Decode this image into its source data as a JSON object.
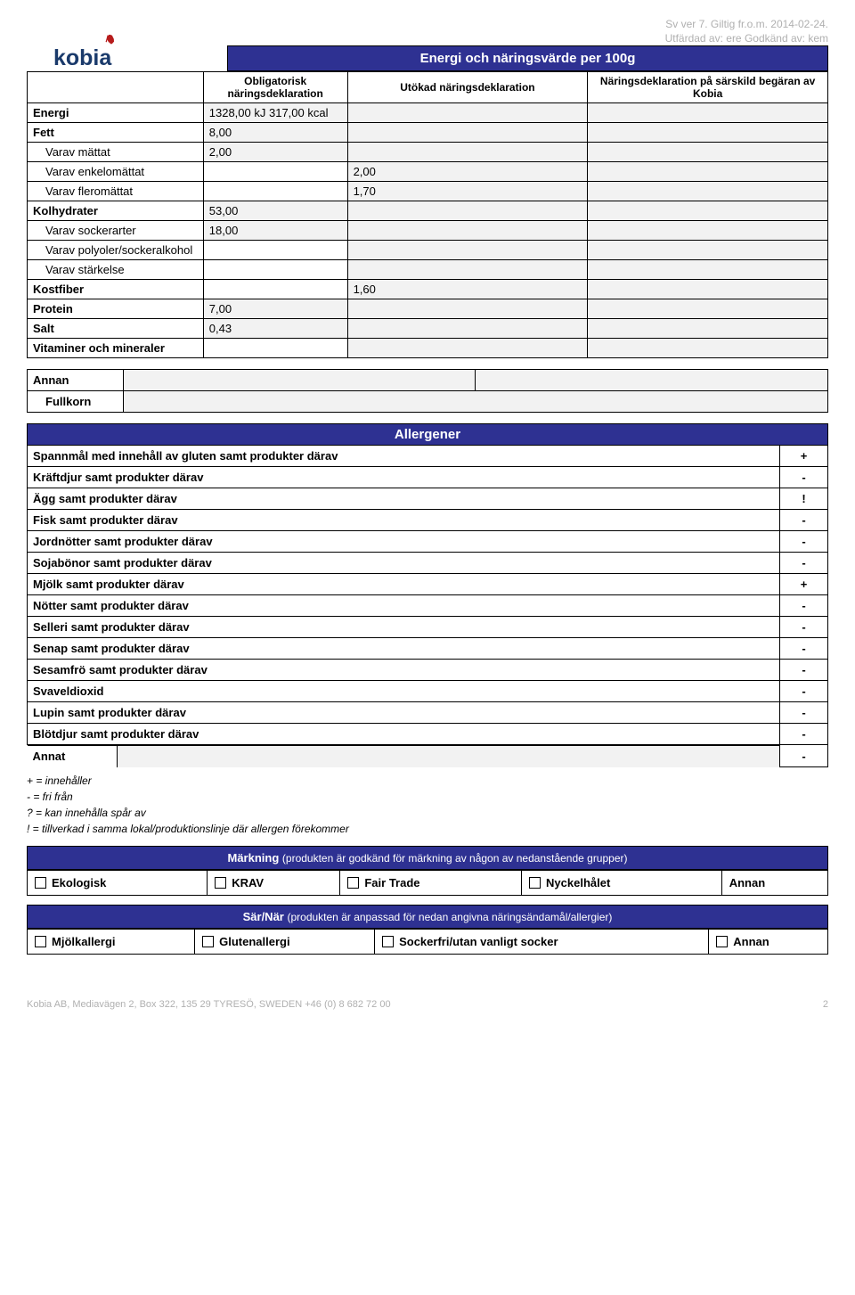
{
  "meta": {
    "line1": "Sv ver 7. Giltig fr.o.m. 2014-02-24.",
    "line2": "Utfärdad av: ere   Godkänd av: kem"
  },
  "logo": {
    "brand": "kobia",
    "accent": "#b71c1c",
    "text_color": "#1a3a6b"
  },
  "nutri": {
    "title": "Energi och näringsvärde per 100g",
    "head": {
      "c1": "",
      "c2": "Obligatorisk näringsdeklaration",
      "c3": "Utökad näringsdeklaration",
      "c4": "Näringsdeklaration på särskild begäran av Kobia"
    },
    "rows": [
      {
        "label": "Energi",
        "val": "1328,00 kJ   317,00 kcal",
        "ext": "",
        "sp": ""
      },
      {
        "label": "Fett",
        "val": "8,00",
        "ext": "",
        "sp": ""
      },
      {
        "label": "Varav mättat",
        "sub": true,
        "val": "2,00",
        "ext": "",
        "sp": ""
      },
      {
        "label": "Varav enkelomättat",
        "sub": true,
        "val": "",
        "ext": "2,00",
        "sp": ""
      },
      {
        "label": "Varav fleromättat",
        "sub": true,
        "val": "",
        "ext": "1,70",
        "sp": ""
      },
      {
        "label": "Kolhydrater",
        "val": "53,00",
        "ext": "",
        "sp": ""
      },
      {
        "label": "Varav sockerarter",
        "sub": true,
        "val": "18,00",
        "ext": "",
        "sp": ""
      },
      {
        "label": "Varav polyoler/sockeralkohol",
        "sub": true,
        "val": "",
        "ext": "",
        "sp": ""
      },
      {
        "label": "Varav stärkelse",
        "sub": true,
        "val": "",
        "ext": "",
        "sp": ""
      },
      {
        "label": "Kostfiber",
        "val": "",
        "ext": "1,60",
        "sp": ""
      },
      {
        "label": "Protein",
        "val": "7,00",
        "ext": "",
        "sp": ""
      },
      {
        "label": "Salt",
        "val": "0,43",
        "ext": "",
        "sp": ""
      },
      {
        "label": "Vitaminer och mineraler",
        "val": "",
        "ext": "",
        "sp": ""
      }
    ]
  },
  "annan": {
    "r1": {
      "c1": "Annan",
      "c2": "",
      "c3": ""
    },
    "r2": {
      "c1": "Fullkorn",
      "c2": ""
    }
  },
  "allergen": {
    "title": "Allergener",
    "rows": [
      {
        "label": "Spannmål med innehåll av gluten samt produkter därav",
        "mark": "+"
      },
      {
        "label": "Kräftdjur samt produkter därav",
        "mark": "-"
      },
      {
        "label": "Ägg samt produkter därav",
        "mark": "!"
      },
      {
        "label": "Fisk samt produkter därav",
        "mark": "-"
      },
      {
        "label": "Jordnötter samt produkter därav",
        "mark": "-"
      },
      {
        "label": "Sojabönor samt produkter därav",
        "mark": "-"
      },
      {
        "label": "Mjölk samt produkter därav",
        "mark": "+"
      },
      {
        "label": "Nötter samt produkter därav",
        "mark": "-"
      },
      {
        "label": "Selleri samt produkter därav",
        "mark": "-"
      },
      {
        "label": "Senap samt produkter därav",
        "mark": "-"
      },
      {
        "label": "Sesamfrö samt produkter därav",
        "mark": "-"
      },
      {
        "label": "Svaveldioxid",
        "mark": "-"
      },
      {
        "label": "Lupin samt produkter därav",
        "mark": "-"
      },
      {
        "label": "Blötdjur samt produkter därav",
        "mark": "-"
      }
    ],
    "annat": {
      "c1": "Annat",
      "c2": "",
      "mark": "-"
    }
  },
  "legend": {
    "l1": "+  = innehåller",
    "l2": "-  = fri från",
    "l3": "?  = kan innehålla spår av",
    "l4": "!  = tillverkad i samma lokal/produktionslinje där allergen förekommer"
  },
  "markning": {
    "title": "Märkning",
    "sub": "(produkten är godkänd för märkning av någon av nedanstående grupper)",
    "opts": [
      "Ekologisk",
      "KRAV",
      "Fair Trade",
      "Nyckelhålet",
      "Annan"
    ]
  },
  "sarnar": {
    "title": "Sär/När",
    "sub": "(produkten är anpassad för nedan angivna näringsändamål/allergier)",
    "opts": [
      "Mjölkallergi",
      "Glutenallergi",
      "Sockerfri/utan vanligt socker",
      "Annan"
    ]
  },
  "footer": {
    "text": "Kobia AB, Mediavägen 2, Box 322, 135 29 TYRESÖ, SWEDEN +46 (0) 8 682 72 00",
    "page": "2"
  }
}
